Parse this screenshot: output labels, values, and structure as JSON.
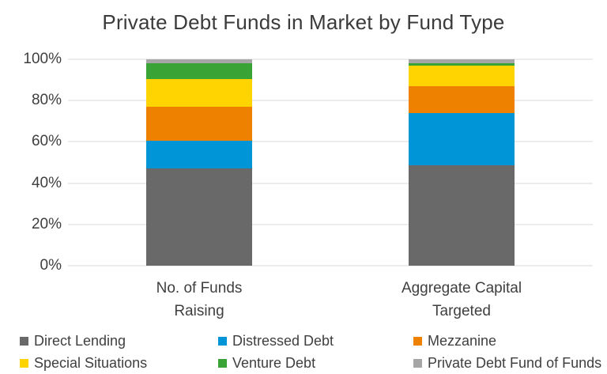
{
  "chart_data": {
    "type": "bar",
    "stacked": true,
    "percent_stacked": true,
    "title": "Private Debt Funds in Market by Fund Type",
    "categories": [
      "No. of Funds\nRaising",
      "Aggregate Capital\nTargeted"
    ],
    "series": [
      {
        "name": "Direct Lending",
        "color": "#696969",
        "values": [
          47.0,
          48.5
        ]
      },
      {
        "name": "Distressed Debt",
        "color": "#0095d6",
        "values": [
          13.5,
          25.5
        ]
      },
      {
        "name": "Mezzanine",
        "color": "#ee8200",
        "values": [
          16.5,
          13.0
        ]
      },
      {
        "name": "Special Situations",
        "color": "#ffd400",
        "values": [
          13.5,
          10.0
        ]
      },
      {
        "name": "Venture Debt",
        "color": "#3aa335",
        "values": [
          7.5,
          1.0
        ]
      },
      {
        "name": "Private Debt Fund of Funds",
        "color": "#a6a6a6",
        "values": [
          2.0,
          2.0
        ]
      }
    ],
    "y_tick_labels": [
      "0%",
      "20%",
      "40%",
      "60%",
      "80%",
      "100%"
    ],
    "ylim": [
      0,
      100
    ],
    "xlabel": "",
    "ylabel": "",
    "grid": true,
    "gridline_color": "#ececec",
    "legend_position": "bottom",
    "text_color": "#3f3f3f"
  }
}
